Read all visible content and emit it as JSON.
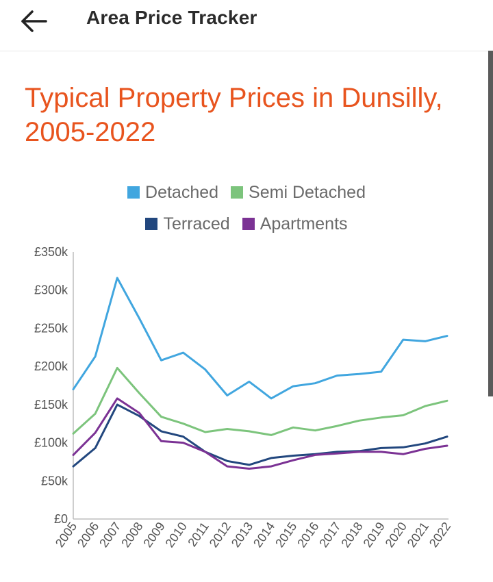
{
  "appbar": {
    "title": "Area Price Tracker",
    "back_icon": "arrow-left-icon"
  },
  "colors": {
    "title": "#e8541e",
    "Detached": "#41a6df",
    "Semi Detached": "#7cc47c",
    "Terraced": "#22477e",
    "Apartments": "#7b3294"
  },
  "chart_data": {
    "type": "line",
    "title": "Typical Property Prices in Dunsilly, 2005-2022",
    "x": [
      "2005",
      "2006",
      "2007",
      "2008",
      "2009",
      "2010",
      "2011",
      "2012",
      "2013",
      "2014",
      "2015",
      "2016",
      "2017",
      "2018",
      "2019",
      "2020",
      "2021",
      "2022"
    ],
    "y_ticks": [
      "£0",
      "£50k",
      "£100k",
      "£150k",
      "£200k",
      "£250k",
      "£300k",
      "£350k"
    ],
    "ylim": [
      0,
      350000
    ],
    "grid": false,
    "legend_position": "top",
    "series": [
      {
        "name": "Detached",
        "values": [
          170000,
          213000,
          316000,
          263000,
          208000,
          218000,
          196000,
          162000,
          180000,
          158000,
          174000,
          178000,
          188000,
          190000,
          193000,
          235000,
          233000,
          240000
        ]
      },
      {
        "name": "Semi Detached",
        "values": [
          112000,
          138000,
          198000,
          165000,
          134000,
          125000,
          114000,
          118000,
          115000,
          110000,
          120000,
          116000,
          122000,
          129000,
          133000,
          136000,
          148000,
          155000
        ]
      },
      {
        "name": "Terraced",
        "values": [
          69000,
          93000,
          150000,
          135000,
          115000,
          108000,
          88000,
          76000,
          71000,
          80000,
          83000,
          85000,
          88000,
          89000,
          93000,
          94000,
          99000,
          108000
        ]
      },
      {
        "name": "Apartments",
        "values": [
          84000,
          113000,
          158000,
          139000,
          102000,
          100000,
          88000,
          69000,
          66000,
          69000,
          77000,
          84000,
          86000,
          88000,
          88000,
          85000,
          92000,
          96000
        ]
      }
    ]
  }
}
